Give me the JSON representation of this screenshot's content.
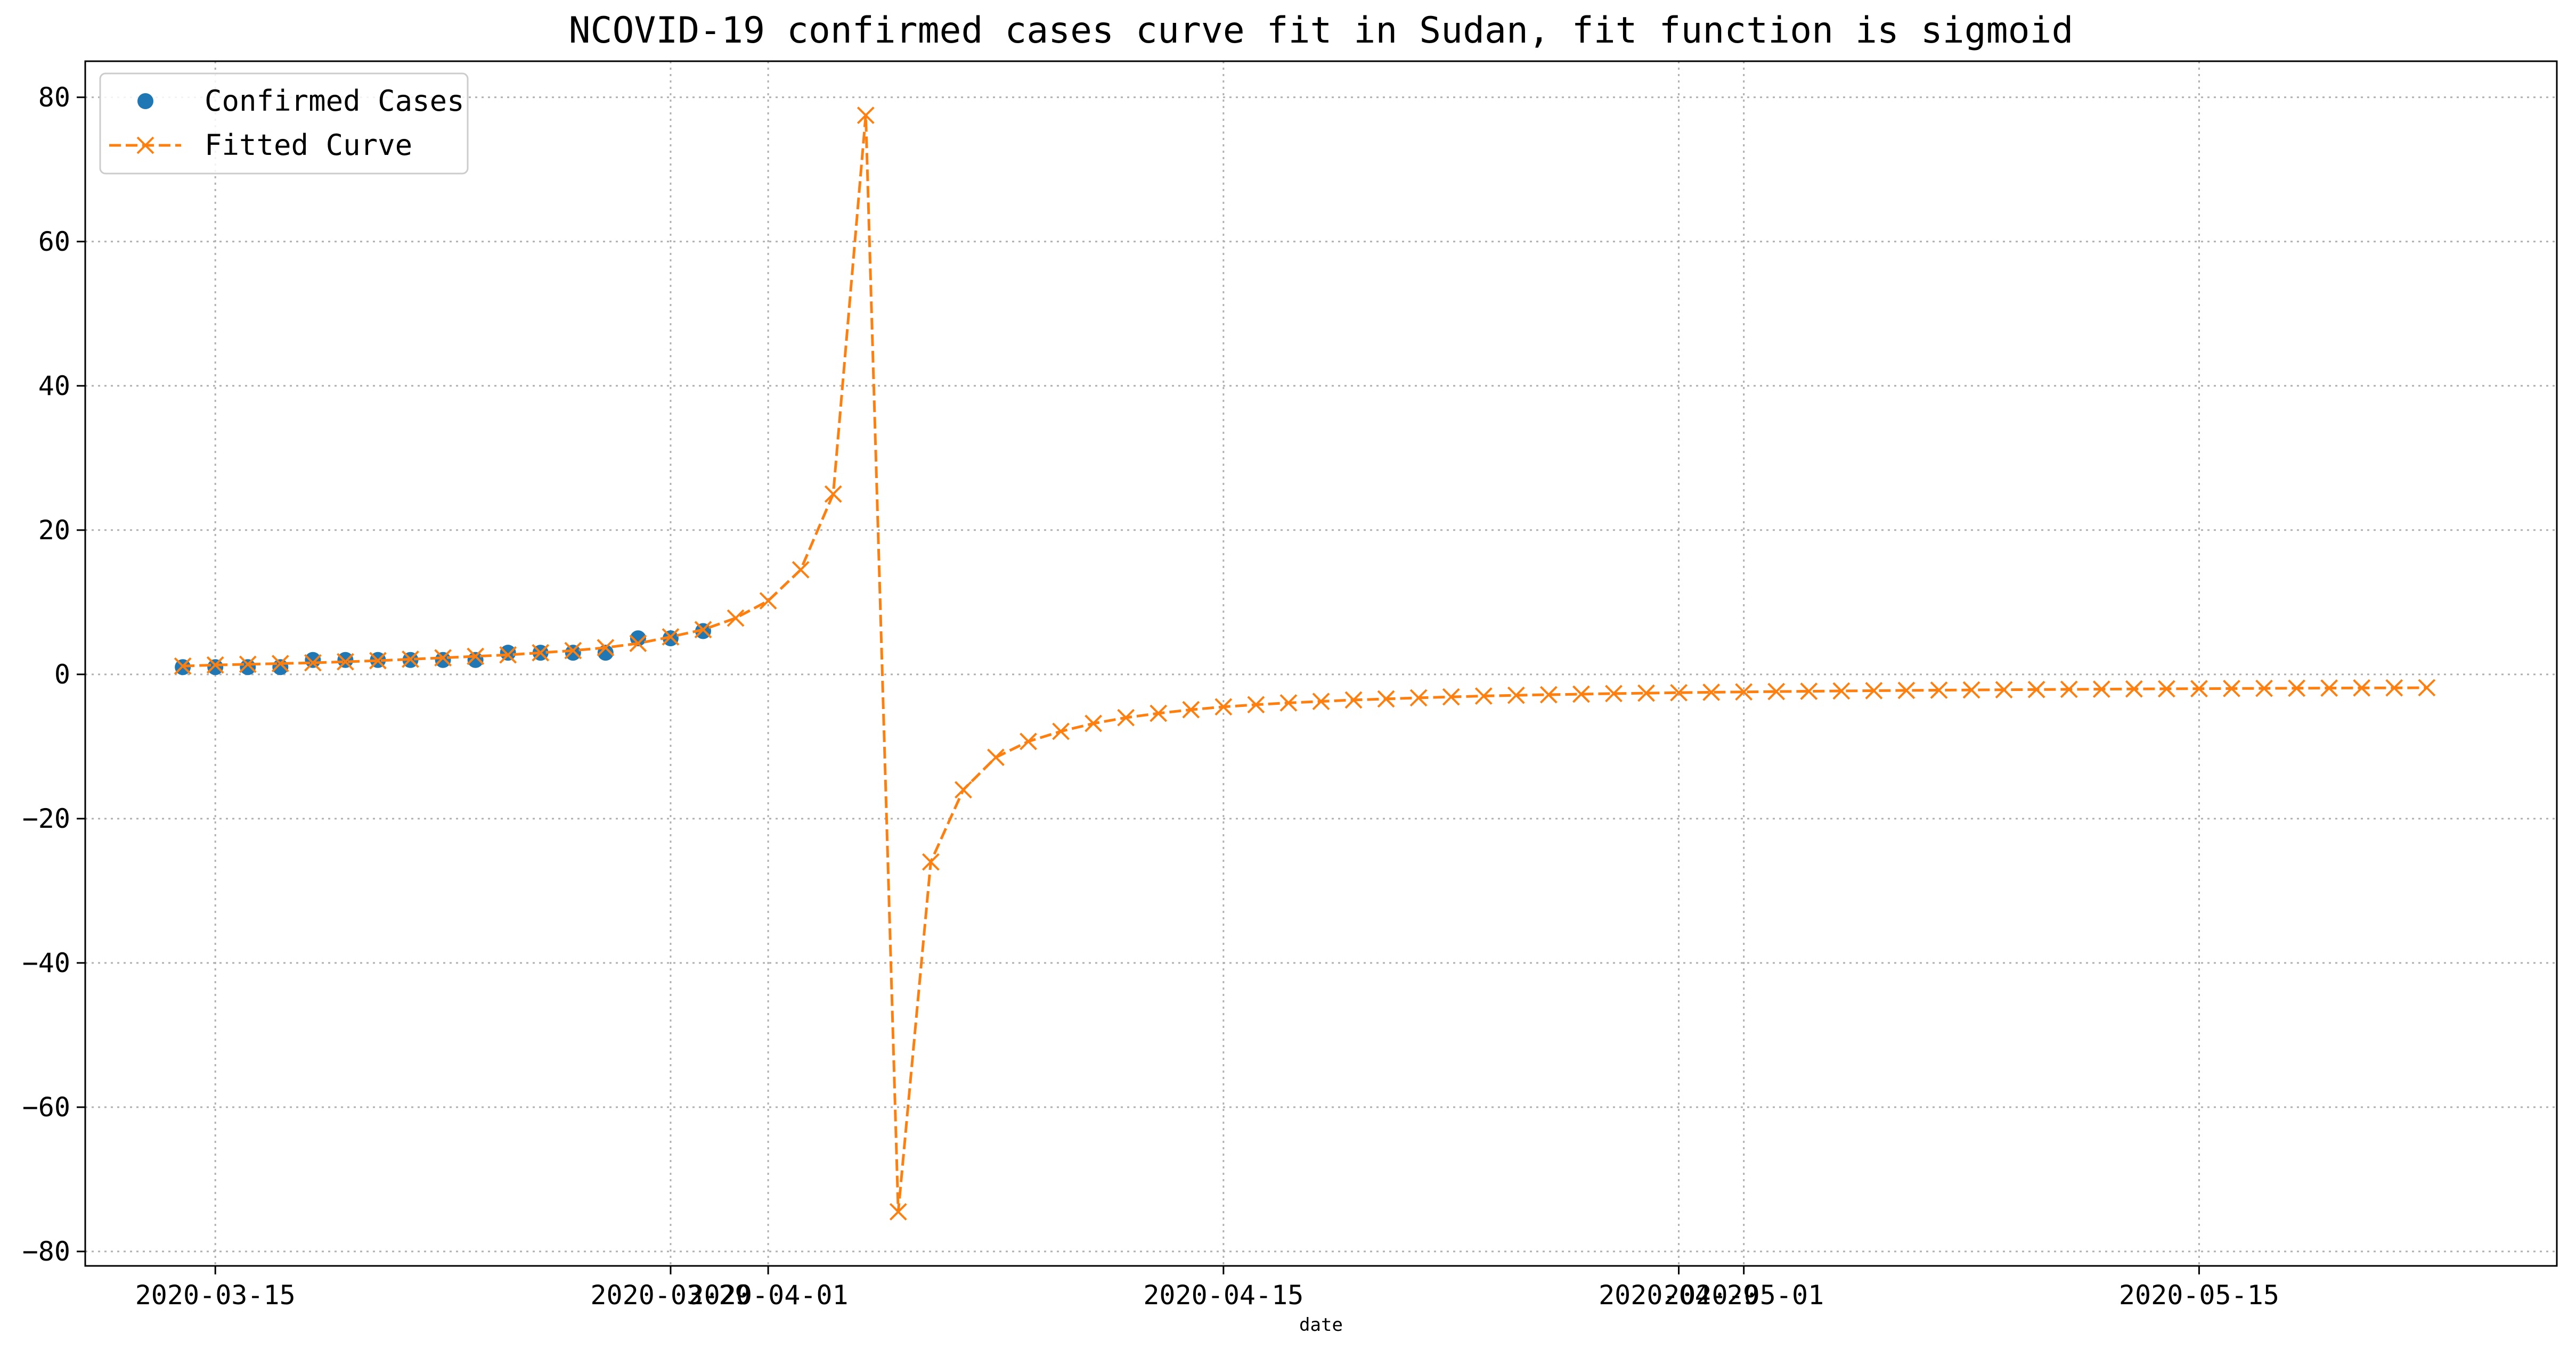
{
  "chart_data": {
    "type": "line",
    "title": "NCOVID-19 confirmed cases curve fit in Sudan, fit function is sigmoid",
    "xlabel": "date",
    "ylabel": "",
    "grid": true,
    "legend_position": "upper-left",
    "x_axis": {
      "type": "date",
      "range": [
        "2020-03-11",
        "2020-05-26"
      ],
      "tick_labels": [
        {
          "date": "2020-03-15",
          "label": "2020-03-15"
        },
        {
          "date": "2020-03-29",
          "label": "2020-03-29"
        },
        {
          "date": "2020-04-01",
          "label": "2020-04-01"
        },
        {
          "date": "2020-04-15",
          "label": "2020-04-15"
        },
        {
          "date": "2020-04-29",
          "label": "2020-04-29"
        },
        {
          "date": "2020-05-01",
          "label": "2020-05-01"
        },
        {
          "date": "2020-05-15",
          "label": "2020-05-15"
        }
      ]
    },
    "y_axis": {
      "range": [
        -82,
        85
      ],
      "ticks": [
        -80,
        -60,
        -40,
        -20,
        0,
        20,
        40,
        60,
        80
      ],
      "tick_labels": [
        "−80",
        "−60",
        "−40",
        "−20",
        "0",
        "20",
        "40",
        "60",
        "80"
      ]
    },
    "series": [
      {
        "name": "Confirmed Cases",
        "style": "scatter",
        "marker": "circle",
        "color": "#1f77b4",
        "points": [
          [
            "2020-03-14",
            1
          ],
          [
            "2020-03-15",
            1
          ],
          [
            "2020-03-16",
            1
          ],
          [
            "2020-03-17",
            1
          ],
          [
            "2020-03-18",
            2
          ],
          [
            "2020-03-19",
            2
          ],
          [
            "2020-03-20",
            2
          ],
          [
            "2020-03-21",
            2
          ],
          [
            "2020-03-22",
            2
          ],
          [
            "2020-03-23",
            2
          ],
          [
            "2020-03-24",
            3
          ],
          [
            "2020-03-25",
            3
          ],
          [
            "2020-03-26",
            3
          ],
          [
            "2020-03-27",
            3
          ],
          [
            "2020-03-28",
            5
          ],
          [
            "2020-03-29",
            5
          ],
          [
            "2020-03-30",
            6
          ]
        ]
      },
      {
        "name": "Fitted Curve",
        "style": "dashed-line",
        "marker": "x",
        "color": "#ff7f0e",
        "points": [
          [
            "2020-03-14",
            1.15
          ],
          [
            "2020-03-15",
            1.3
          ],
          [
            "2020-03-16",
            1.4
          ],
          [
            "2020-03-17",
            1.5
          ],
          [
            "2020-03-18",
            1.6
          ],
          [
            "2020-03-19",
            1.75
          ],
          [
            "2020-03-20",
            1.9
          ],
          [
            "2020-03-21",
            2.1
          ],
          [
            "2020-03-22",
            2.3
          ],
          [
            "2020-03-23",
            2.5
          ],
          [
            "2020-03-24",
            2.7
          ],
          [
            "2020-03-25",
            3.0
          ],
          [
            "2020-03-26",
            3.3
          ],
          [
            "2020-03-27",
            3.7
          ],
          [
            "2020-03-28",
            4.3
          ],
          [
            "2020-03-29",
            5.2
          ],
          [
            "2020-03-30",
            6.2
          ],
          [
            "2020-03-31",
            7.8
          ],
          [
            "2020-04-01",
            10.2
          ],
          [
            "2020-04-02",
            14.5
          ],
          [
            "2020-04-03",
            25
          ],
          [
            "2020-04-04",
            77.5
          ],
          [
            "2020-04-05",
            -74.5
          ],
          [
            "2020-04-06",
            -26
          ],
          [
            "2020-04-07",
            -16
          ],
          [
            "2020-04-08",
            -11.5
          ],
          [
            "2020-04-09",
            -9.3
          ],
          [
            "2020-04-10",
            -7.9
          ],
          [
            "2020-04-11",
            -6.8
          ],
          [
            "2020-04-12",
            -6.0
          ],
          [
            "2020-04-13",
            -5.4
          ],
          [
            "2020-04-14",
            -4.9
          ],
          [
            "2020-04-15",
            -4.5
          ],
          [
            "2020-04-16",
            -4.2
          ],
          [
            "2020-04-17",
            -3.95
          ],
          [
            "2020-04-18",
            -3.75
          ],
          [
            "2020-04-19",
            -3.55
          ],
          [
            "2020-04-20",
            -3.4
          ],
          [
            "2020-04-21",
            -3.25
          ],
          [
            "2020-04-22",
            -3.12
          ],
          [
            "2020-04-23",
            -3.0
          ],
          [
            "2020-04-24",
            -2.9
          ],
          [
            "2020-04-25",
            -2.82
          ],
          [
            "2020-04-26",
            -2.74
          ],
          [
            "2020-04-27",
            -2.66
          ],
          [
            "2020-04-28",
            -2.6
          ],
          [
            "2020-04-29",
            -2.54
          ],
          [
            "2020-04-30",
            -2.48
          ],
          [
            "2020-05-01",
            -2.43
          ],
          [
            "2020-05-02",
            -2.38
          ],
          [
            "2020-05-03",
            -2.34
          ],
          [
            "2020-05-04",
            -2.3
          ],
          [
            "2020-05-05",
            -2.26
          ],
          [
            "2020-05-06",
            -2.22
          ],
          [
            "2020-05-07",
            -2.19
          ],
          [
            "2020-05-08",
            -2.16
          ],
          [
            "2020-05-09",
            -2.13
          ],
          [
            "2020-05-10",
            -2.1
          ],
          [
            "2020-05-11",
            -2.07
          ],
          [
            "2020-05-12",
            -2.05
          ],
          [
            "2020-05-13",
            -2.02
          ],
          [
            "2020-05-14",
            -2.0
          ],
          [
            "2020-05-15",
            -1.98
          ],
          [
            "2020-05-16",
            -1.96
          ],
          [
            "2020-05-17",
            -1.94
          ],
          [
            "2020-05-18",
            -1.92
          ],
          [
            "2020-05-19",
            -1.9
          ],
          [
            "2020-05-20",
            -1.88
          ],
          [
            "2020-05-21",
            -1.87
          ],
          [
            "2020-05-22",
            -1.85
          ]
        ]
      }
    ]
  }
}
